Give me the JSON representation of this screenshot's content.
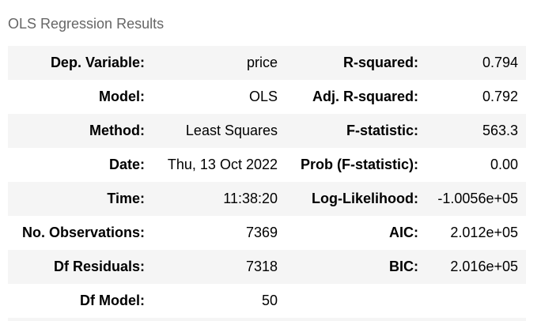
{
  "caption": "OLS Regression Results",
  "rows": [
    {
      "l1": "Dep. Variable:",
      "v1": "price",
      "l2": "R-squared:",
      "v2": "0.794"
    },
    {
      "l1": "Model:",
      "v1": "OLS",
      "l2": "Adj. R-squared:",
      "v2": "0.792"
    },
    {
      "l1": "Method:",
      "v1": "Least Squares",
      "l2": "F-statistic:",
      "v2": "563.3"
    },
    {
      "l1": "Date:",
      "v1": "Thu, 13 Oct 2022",
      "l2": "Prob (F-statistic):",
      "v2": "0.00"
    },
    {
      "l1": "Time:",
      "v1": "11:38:20",
      "l2": "Log-Likelihood:",
      "v2": "-1.0056e+05"
    },
    {
      "l1": "No. Observations:",
      "v1": "7369",
      "l2": "AIC:",
      "v2": "2.012e+05"
    },
    {
      "l1": "Df Residuals:",
      "v1": "7318",
      "l2": "BIC:",
      "v2": "2.016e+05"
    },
    {
      "l1": "Df Model:",
      "v1": "50",
      "l2": "",
      "v2": ""
    }
  ]
}
